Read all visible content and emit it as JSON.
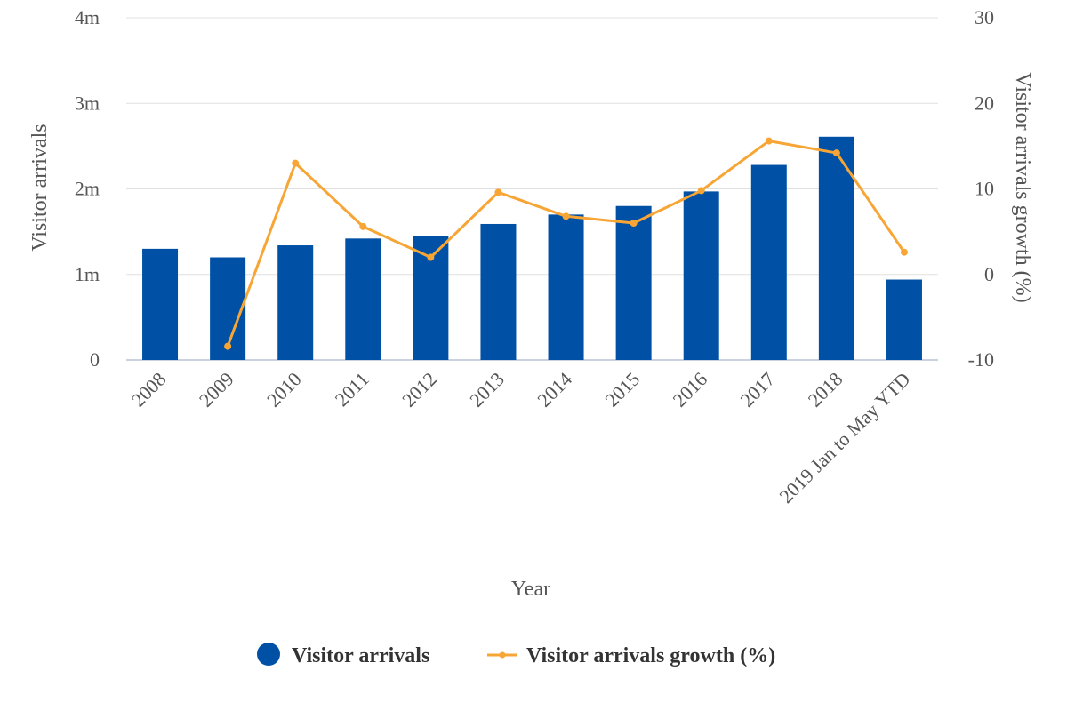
{
  "chart_data": {
    "type": "bar+line",
    "categories": [
      "2008",
      "2009",
      "2010",
      "2011",
      "2012",
      "2013",
      "2014",
      "2015",
      "2016",
      "2017",
      "2018",
      "2019 Jan to May YTD"
    ],
    "series": [
      {
        "name": "Visitor arrivals",
        "type": "bar",
        "axis": "left",
        "color": "#0051a5",
        "values": [
          1300000,
          1200000,
          1340000,
          1420000,
          1450000,
          1590000,
          1700000,
          1800000,
          1970000,
          2280000,
          2610000,
          940000
        ]
      },
      {
        "name": "Visitor arrivals growth (%)",
        "type": "line",
        "axis": "right",
        "color": "#f7a535",
        "values": [
          null,
          -8.4,
          13.0,
          5.6,
          2.0,
          9.6,
          6.8,
          6.0,
          9.8,
          15.6,
          14.2,
          2.6
        ]
      }
    ],
    "xlabel": "Year",
    "ylabel_left": "Visitor arrivals",
    "ylabel_right": "Visitor arrivals growth (%)",
    "ylim_left": [
      0,
      4000000
    ],
    "yticks_left": [
      "0",
      "1m",
      "2m",
      "3m",
      "4m"
    ],
    "ylim_right": [
      -10,
      30
    ],
    "yticks_right": [
      "-10",
      "0",
      "10",
      "20",
      "30"
    ],
    "grid": true,
    "legend": "bottom"
  }
}
